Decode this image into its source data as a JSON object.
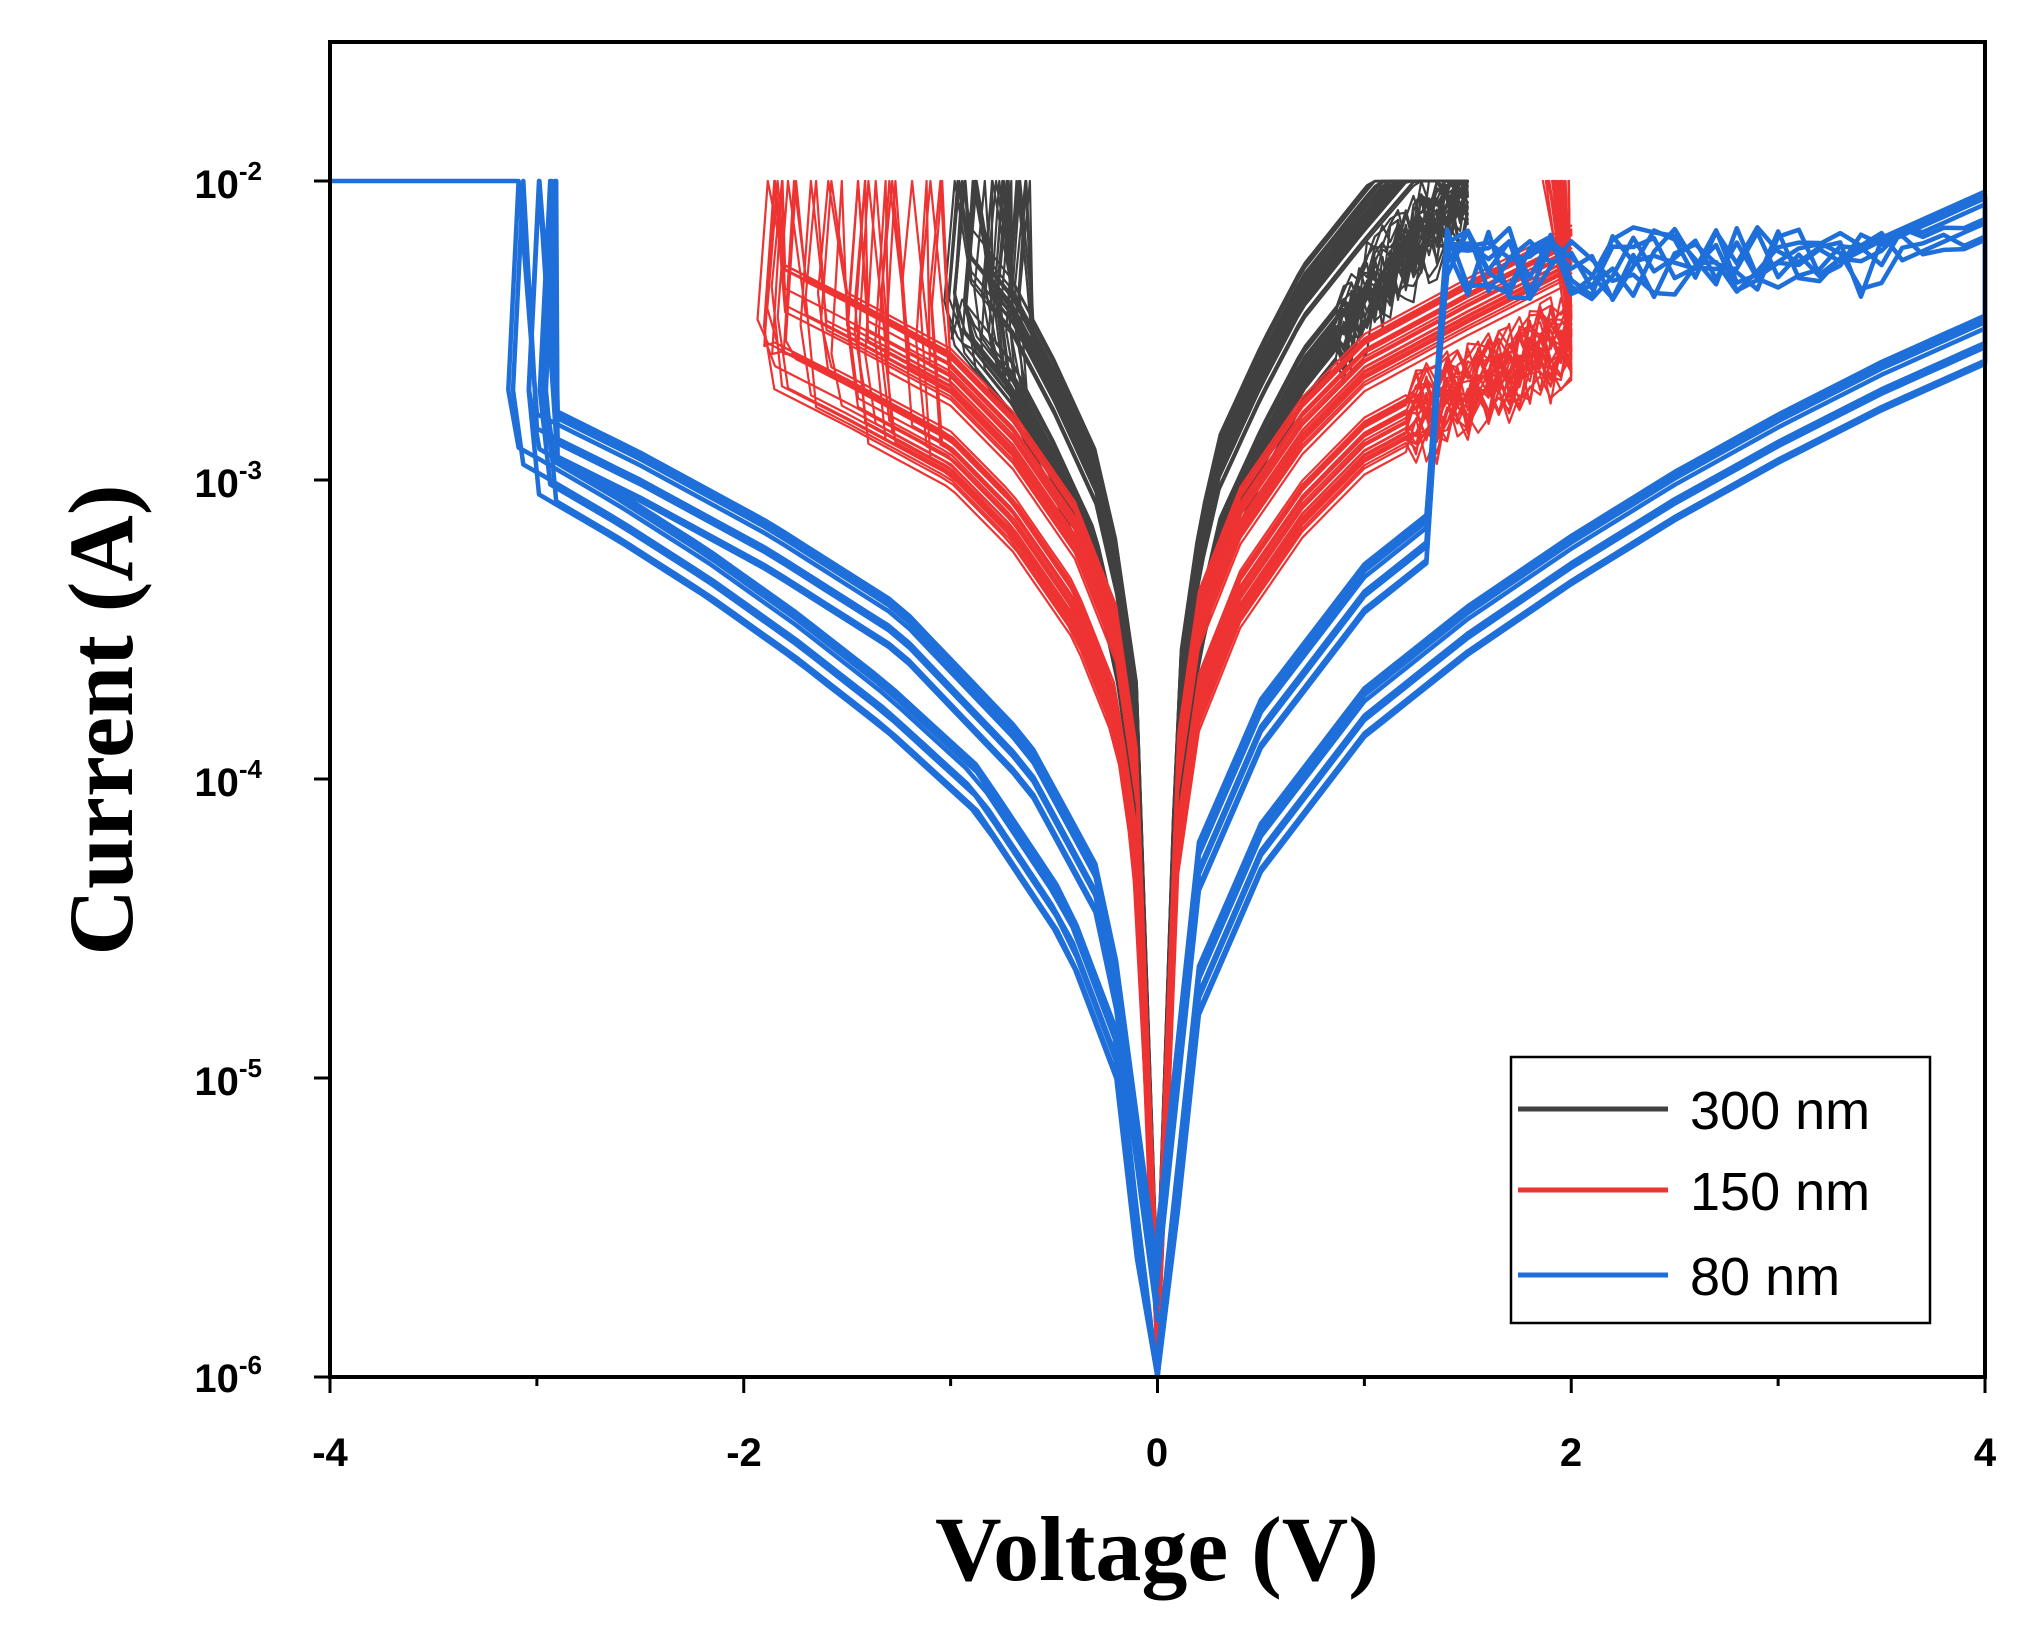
{
  "chart_data": {
    "type": "line",
    "title": "",
    "xlabel": "Voltage (V)",
    "ylabel": "Current (A)",
    "xscale": "linear",
    "yscale": "log",
    "xlim": [
      -4,
      4
    ],
    "ylim": [
      1e-06,
      0.03
    ],
    "compliance_current": 0.01,
    "x_ticks": [
      {
        "value": -4,
        "label": "-4"
      },
      {
        "value": -2,
        "label": "-2"
      },
      {
        "value": 0,
        "label": "0"
      },
      {
        "value": 2,
        "label": "2"
      },
      {
        "value": 4,
        "label": "4"
      }
    ],
    "x_minor_ticks": [
      -3,
      -1,
      1,
      3
    ],
    "y_ticks": [
      {
        "value": 0.01,
        "base": "10",
        "exp": "-2"
      },
      {
        "value": 0.001,
        "base": "10",
        "exp": "-3"
      },
      {
        "value": 0.0001,
        "base": "10",
        "exp": "-4"
      },
      {
        "value": 1e-05,
        "base": "10",
        "exp": "-5"
      },
      {
        "value": 1e-06,
        "base": "10",
        "exp": "-6"
      }
    ],
    "legend_position": "bottom-right",
    "series": [
      {
        "name": "300 nm",
        "color": "#404040",
        "set_voltage": 1.5,
        "reset_voltage_range": [
          -0.6,
          -1.0
        ],
        "cycles": 30,
        "hrs_v": [
          0,
          0.1,
          0.2,
          0.3,
          0.5,
          0.7,
          1.0,
          1.3,
          1.5
        ],
        "hrs_i": [
          1e-06,
          0.0001,
          0.0003,
          0.0006,
          0.0012,
          0.0022,
          0.004,
          0.007,
          0.01
        ]
      },
      {
        "name": "150 nm",
        "color": "#ee3333",
        "set_voltage": 2.0,
        "reset_voltage_range": [
          -1.0,
          -1.9
        ],
        "cycles": 30,
        "hrs_v": [
          0,
          0.1,
          0.2,
          0.4,
          0.7,
          1.0,
          1.5,
          2.0
        ],
        "hrs_i": [
          1e-06,
          6e-05,
          0.00018,
          0.0004,
          0.0008,
          0.0013,
          0.002,
          0.003
        ]
      },
      {
        "name": "80 nm",
        "color": "#1e6fd9",
        "set_voltage": 4.0,
        "reset_voltage_range": [
          -2.8,
          -3.1
        ],
        "cycles": 8,
        "hrs_v": [
          0,
          0.2,
          0.5,
          1.0,
          1.5,
          2.0,
          2.5,
          3.0,
          3.5,
          4.0
        ],
        "hrs_i": [
          1e-06,
          2e-05,
          6e-05,
          0.00017,
          0.00032,
          0.00055,
          0.0009,
          0.0014,
          0.0021,
          0.003
        ]
      }
    ]
  }
}
